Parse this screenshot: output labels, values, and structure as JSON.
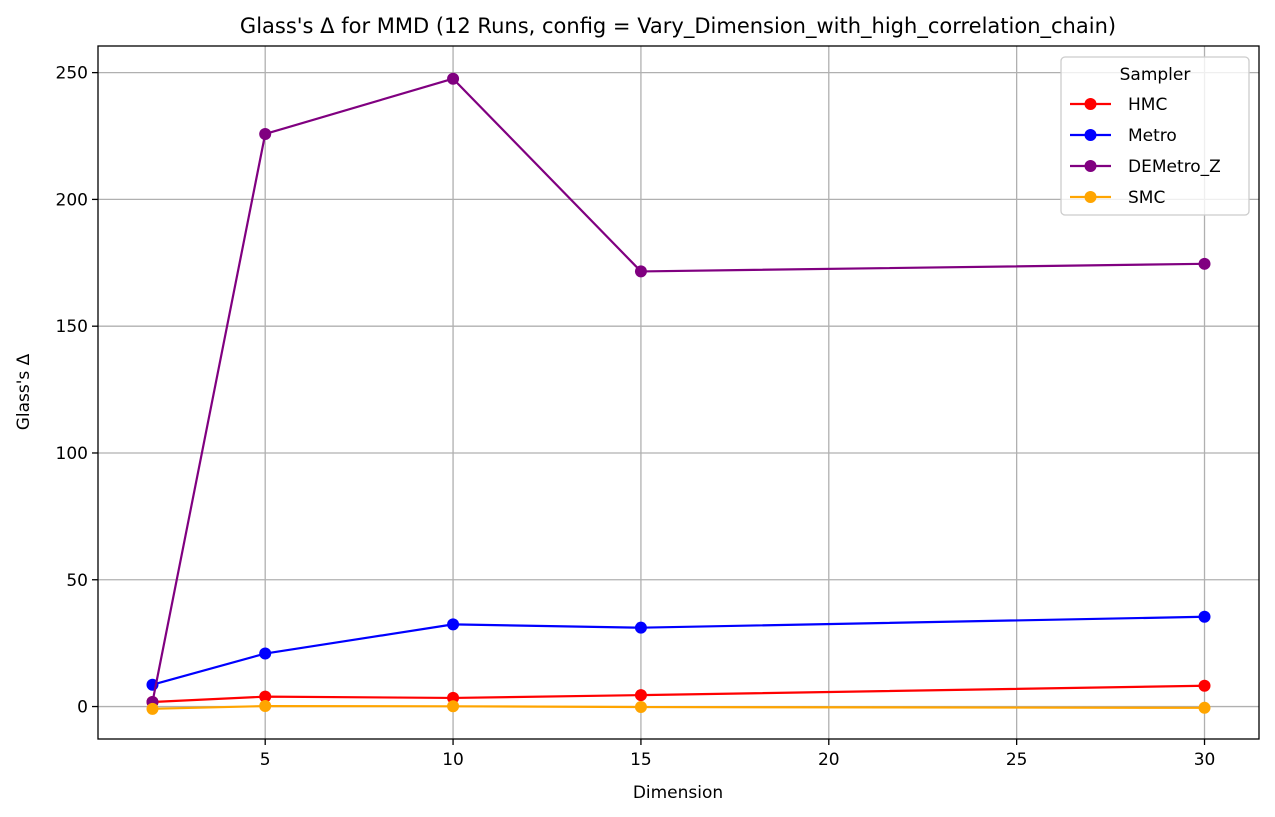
{
  "chart_data": {
    "type": "line",
    "title": "Glass's Δ for MMD (12 Runs, config = Vary_Dimension_with_high_correlation_chain)",
    "xlabel": "Dimension",
    "ylabel": "Glass's Δ",
    "x": [
      2,
      5,
      10,
      15,
      30
    ],
    "xlim": [
      0.55,
      31.45
    ],
    "ylim": [
      -12.8,
      260.5
    ],
    "xticks": [
      5,
      10,
      15,
      20,
      25,
      30
    ],
    "yticks": [
      0,
      50,
      100,
      150,
      200,
      250
    ],
    "grid": true,
    "legend": {
      "title": "Sampler",
      "placement": "top-right"
    },
    "series": [
      {
        "name": "HMC",
        "color": "#ff0000",
        "values": [
          1.8,
          3.9,
          3.4,
          4.5,
          8.2
        ]
      },
      {
        "name": "Metro",
        "color": "#0000ff",
        "values": [
          8.6,
          20.9,
          32.4,
          31.1,
          35.4
        ]
      },
      {
        "name": "DEMetro_Z",
        "color": "#800080",
        "values": [
          1.8,
          225.8,
          247.6,
          171.6,
          174.6
        ]
      },
      {
        "name": "SMC",
        "color": "#ffa500",
        "values": [
          -0.9,
          0.2,
          0.1,
          -0.2,
          -0.5
        ]
      }
    ]
  }
}
